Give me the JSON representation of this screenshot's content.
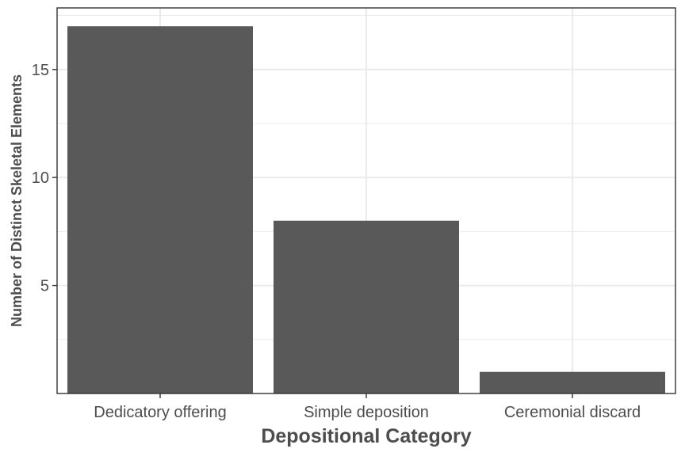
{
  "chart_data": {
    "type": "bar",
    "categories": [
      "Dedicatory offering",
      "Simple deposition",
      "Ceremonial discard"
    ],
    "values": [
      17,
      8,
      1
    ],
    "title": "",
    "xlabel": "Depositional Category",
    "ylabel": "Number of Distinct Skeletal Elements",
    "ylim": [
      0,
      17.85
    ],
    "yticks": [
      5,
      10,
      15
    ],
    "y_tick_labels": [
      "5",
      "10",
      "15"
    ],
    "grid": true,
    "legend": "none",
    "colors": {
      "bar": "#595959",
      "grid": "#ebebeb",
      "panel_border": "#333333",
      "text": "#4d4d4d"
    }
  }
}
